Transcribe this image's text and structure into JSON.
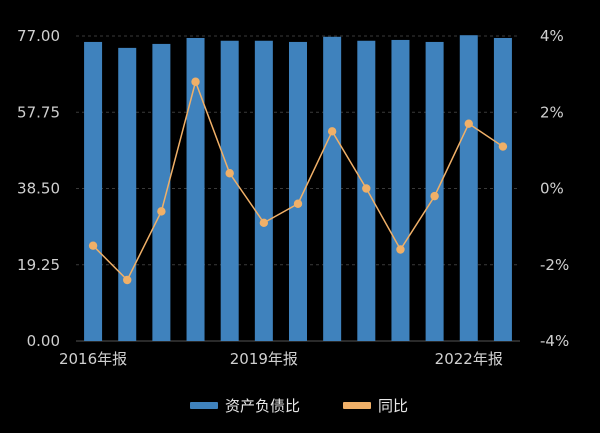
{
  "chart_data": {
    "type": "bar",
    "title": "",
    "xlabel": "",
    "ylabel": "",
    "categories": [
      "2016年报",
      "",
      "",
      "",
      "",
      "2019年报",
      "",
      "",
      "",
      "",
      "",
      "2022年报",
      ""
    ],
    "x_tick_labels": [
      "2016年报",
      "2019年报",
      "2022年报"
    ],
    "series": [
      {
        "name": "资产负债比",
        "type": "bar",
        "axis": "left",
        "color": "#3f82bd",
        "values": [
          75.5,
          74.0,
          75.0,
          76.5,
          75.8,
          75.8,
          75.5,
          76.8,
          75.8,
          76.0,
          75.5,
          77.2,
          76.5
        ]
      },
      {
        "name": "同比",
        "type": "line",
        "axis": "right",
        "color": "#f0b068",
        "values": [
          -1.5,
          -2.4,
          -0.6,
          2.8,
          0.4,
          -0.9,
          -0.4,
          1.5,
          0.0,
          -1.6,
          -0.2,
          1.7,
          1.1
        ]
      }
    ],
    "y_left": {
      "ylim": [
        0,
        77
      ],
      "ticks": [
        "0.00",
        "19.25",
        "38.50",
        "57.75",
        "77.00"
      ],
      "tick_values": [
        0,
        19.25,
        38.5,
        57.75,
        77
      ]
    },
    "y_right": {
      "ylim": [
        -4,
        4
      ],
      "ticks": [
        "-4%",
        "-2%",
        "0%",
        "2%",
        "4%"
      ],
      "tick_values": [
        -4,
        -2,
        0,
        2,
        4
      ]
    },
    "grid": true,
    "legend_position": "bottom-center"
  },
  "legend": {
    "items": [
      {
        "label": "资产负债比",
        "color": "#3f82bd"
      },
      {
        "label": "同比",
        "color": "#f0b068"
      }
    ]
  },
  "colors": {
    "background": "#000000",
    "grid": "#3a3a3a",
    "text": "#d0d0d0"
  }
}
